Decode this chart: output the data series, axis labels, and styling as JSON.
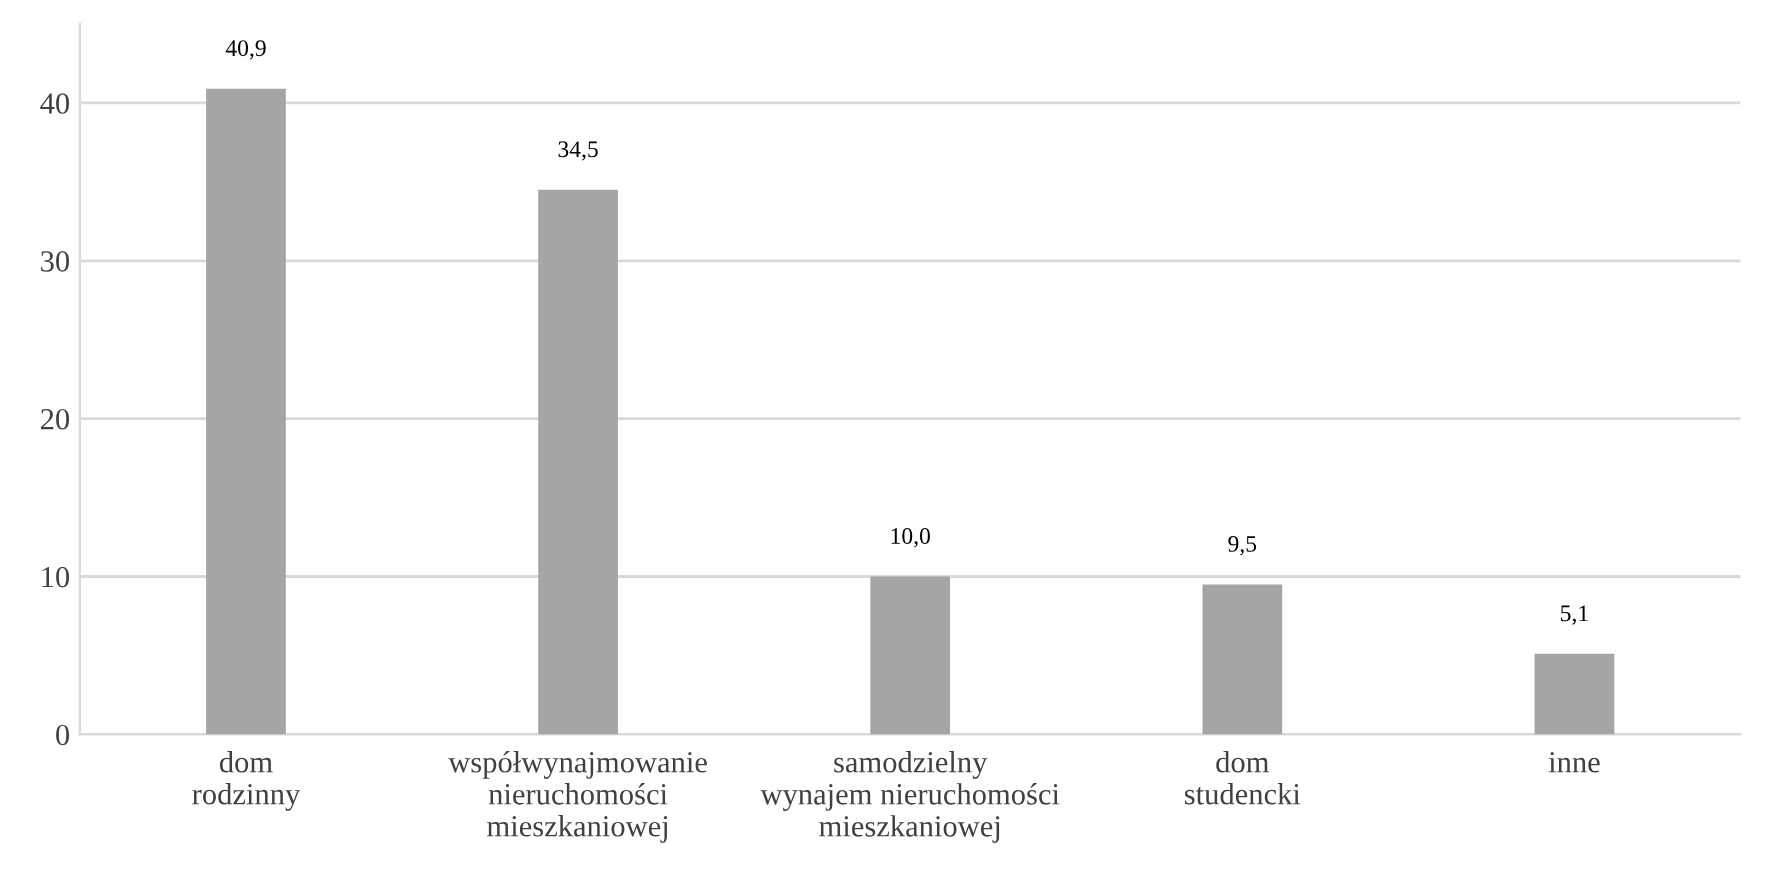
{
  "chart_data": {
    "type": "bar",
    "categories": [
      "dom\nrodzinny",
      "współwynajmowanie\nnieruchomości\nmieszkaniowej",
      "samodzielny\nwynajem nieruchomości\nmieszkaniowej",
      "dom\nstudencki",
      "inne"
    ],
    "values": [
      40.9,
      34.5,
      10.0,
      9.5,
      5.1
    ],
    "value_labels": [
      "40,9",
      "34,5",
      "10,0",
      "9,5",
      "5,1"
    ],
    "color": "#a5a5a5",
    "ylim": [
      0,
      45
    ],
    "yticks": [
      0,
      10,
      20,
      30,
      40
    ],
    "grid": "y"
  }
}
